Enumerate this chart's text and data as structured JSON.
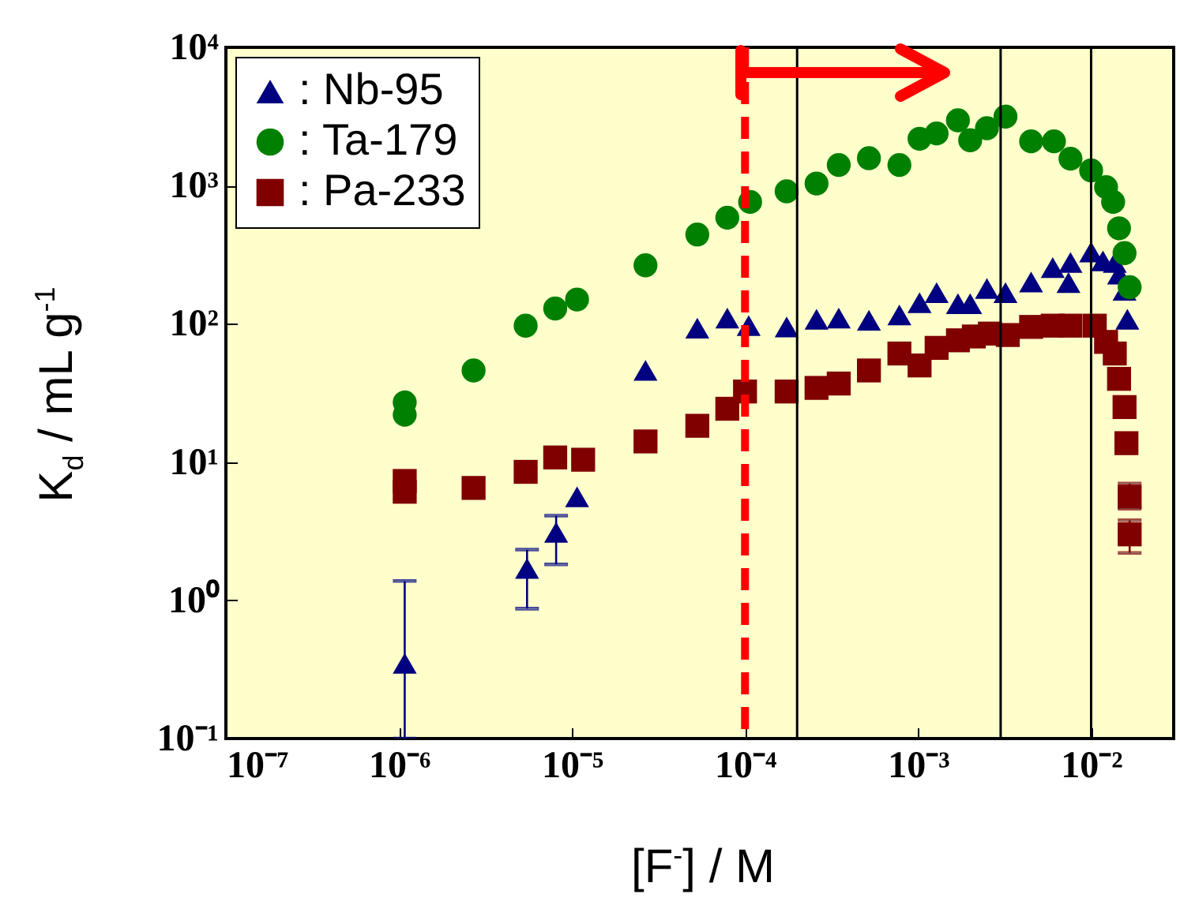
{
  "chart_data": {
    "type": "scatter",
    "xlabel": "[F$^{-}$] / M",
    "ylabel": "K$_{d}$ / mL g$^{-1}$",
    "log": "xy",
    "grid": false,
    "legend": "top left",
    "xlim": [
      1e-07,
      0.03
    ],
    "ylim": [
      0.1,
      10000
    ],
    "xticks": [
      {
        "value": 1e-07,
        "label": "10⁻⁷"
      },
      {
        "value": 1e-06,
        "label": "10⁻⁶"
      },
      {
        "value": 1e-05,
        "label": "10⁻⁵"
      },
      {
        "value": 0.0001,
        "label": "10⁻⁴"
      },
      {
        "value": 0.001,
        "label": "10⁻³"
      },
      {
        "value": 0.01,
        "label": "10⁻²"
      }
    ],
    "yticks": [
      {
        "value": 0.1,
        "label": "10⁻¹"
      },
      {
        "value": 1,
        "label": "10⁰"
      },
      {
        "value": 10,
        "label": "10¹"
      },
      {
        "value": 100,
        "label": "10²"
      },
      {
        "value": 1000,
        "label": "10³"
      },
      {
        "value": 10000,
        "label": "10⁴"
      }
    ],
    "ref_lines": [
      {
        "axis": "x",
        "value": 0.0001,
        "color": "#ff0000",
        "line_style": "dashed"
      },
      {
        "axis": "x",
        "value": 0.0002,
        "color": "#000000",
        "line_style": "solid"
      },
      {
        "axis": "x",
        "value": 0.003,
        "color": "#000000",
        "line_style": "solid"
      },
      {
        "axis": "x",
        "value": 0.01,
        "color": "#000000",
        "line_style": "solid"
      }
    ],
    "series": [
      {
        "name": ": Nb-95",
        "color": "#000080",
        "marker": "triangle",
        "x": [
          1.08e-06,
          5.5e-06,
          8.1e-06,
          1.07e-05,
          2.66e-05,
          5.3e-05,
          7.9e-05,
          0.000105,
          0.000174,
          0.000259,
          0.000348,
          0.00052,
          0.00078,
          0.00102,
          0.00128,
          0.0017,
          0.002,
          0.0025,
          0.0032,
          0.0045,
          0.006,
          0.0074,
          0.0076,
          0.01,
          0.0117,
          0.0137,
          0.0145,
          0.0156,
          0.0162
        ],
        "values": [
          0.35,
          1.7,
          3.1,
          5.6,
          46,
          93,
          110,
          97,
          95,
          108,
          110,
          106,
          116,
          142,
          168,
          140,
          140,
          180,
          168,
          201,
          255,
          199,
          278,
          331,
          285,
          278,
          229,
          175,
          108
        ],
        "errors": [
          [
            0.1,
            1.38
          ],
          [
            0.87,
            2.33
          ],
          [
            1.82,
            4.1
          ],
          null,
          null,
          null,
          null,
          null,
          null,
          null,
          null,
          null,
          null,
          null,
          null,
          null,
          null,
          null,
          null,
          null,
          null,
          null,
          null,
          null,
          null,
          null,
          null,
          null,
          null
        ]
      },
      {
        "name": ": Ta-179",
        "color": "#008000",
        "marker": "circle",
        "x": [
          1.08e-06,
          1.08e-06,
          2.7e-06,
          5.4e-06,
          8e-06,
          1.07e-05,
          2.66e-05,
          5.3e-05,
          7.9e-05,
          0.000107,
          0.000174,
          0.000259,
          0.000348,
          0.00052,
          0.00078,
          0.00102,
          0.00128,
          0.0017,
          0.002,
          0.0025,
          0.0032,
          0.0045,
          0.0061,
          0.0076,
          0.01,
          0.0122,
          0.0134,
          0.0145,
          0.0156,
          0.0167
        ],
        "values": [
          27,
          22,
          46,
          97,
          129,
          150,
          265,
          443,
          586,
          762,
          908,
          1035,
          1409,
          1578,
          1409,
          2183,
          2383,
          2966,
          2128,
          2600,
          3155,
          2089,
          2089,
          1565,
          1288,
          975,
          762,
          491,
          325,
          184
        ]
      },
      {
        "name": ": Pa-233",
        "color": "#800000",
        "marker": "square",
        "x": [
          1.08e-06,
          1.08e-06,
          2.7e-06,
          5.4e-06,
          8e-06,
          1.16e-05,
          2.66e-05,
          5.3e-05,
          7.9e-05,
          0.0001,
          0.000174,
          0.000259,
          0.000348,
          0.00052,
          0.00078,
          0.00102,
          0.00128,
          0.0017,
          0.0021,
          0.0026,
          0.0033,
          0.0045,
          0.006,
          0.0076,
          0.0105,
          0.0122,
          0.0137,
          0.0145,
          0.0156,
          0.016,
          0.0167,
          0.0167
        ],
        "values": [
          7.3,
          6.1,
          6.5,
          8.5,
          10.8,
          10.4,
          14.1,
          18.3,
          24.3,
          32.4,
          32.4,
          34.4,
          37,
          46,
          61,
          50,
          67,
          76,
          81,
          85,
          83,
          95,
          97,
          97,
          97,
          74,
          61,
          40,
          25,
          13.7,
          5.6,
          3
        ],
        "errors": [
          null,
          null,
          null,
          null,
          null,
          null,
          null,
          null,
          null,
          null,
          null,
          null,
          null,
          null,
          null,
          null,
          null,
          null,
          null,
          null,
          null,
          null,
          null,
          null,
          null,
          null,
          null,
          null,
          null,
          null,
          [
            4.6,
            7
          ],
          [
            2.2,
            3.8
          ]
        ]
      }
    ]
  }
}
